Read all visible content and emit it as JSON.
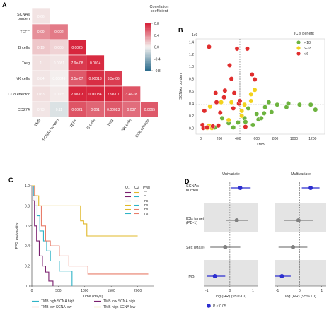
{
  "panels": {
    "a": "A",
    "b": "B",
    "c": "C",
    "d": "D"
  },
  "chart_data": [
    {
      "type": "heatmap",
      "panel": "A",
      "row_labels": [
        "SCNAs\nburden",
        "TEFF",
        "B cells",
        "Treg",
        "NK cells",
        "CD8 effector",
        "CD274"
      ],
      "col_labels": [
        "TMB",
        "SCNAs burden",
        "TEFF",
        "B cells",
        "Treg",
        "NK cells",
        "CD8 effector"
      ],
      "coef_matrix": [
        [
          0.06
        ],
        [
          0.39,
          0.47
        ],
        [
          0.17,
          0.12,
          0.82
        ],
        [
          0.07,
          0.05,
          0.72,
          0.78
        ],
        [
          0.05,
          0.01,
          0.6,
          0.77,
          0.71
        ],
        [
          0.08,
          0.03,
          0.92,
          0.85,
          0.8,
          0.62
        ],
        [
          0.05,
          -0.1,
          0.62,
          0.55,
          0.6,
          0.52,
          0.6
        ]
      ],
      "cell_labels": [
        [
          "0.66"
        ],
        [
          "0.99",
          "0.002"
        ],
        [
          "0.19",
          "0.005",
          "0.0026"
        ],
        [
          "1",
          "0.0081",
          "7.9e-08",
          "0.0014"
        ],
        [
          "0.84",
          "0.00049",
          "3.5e-07",
          "0.00013",
          "3.3e-06"
        ],
        [
          "0.63",
          "0.0035",
          "2.9e-07",
          "0.00034",
          "7.9e-07",
          "3.4e-08"
        ],
        [
          "0.73",
          "0.11",
          "0.0021",
          "0.061",
          "0.00023",
          "0.037",
          "0.0065"
        ]
      ],
      "legend_title": "Correlation\ncoefficient",
      "legend_ticks": [
        "0.8",
        "0.4",
        "0.0",
        "-0.4",
        "-0.8"
      ],
      "colors": {
        "positive": "#d7263d",
        "negative": "#2f6e8e",
        "neutral": "#f4f2f0"
      }
    },
    {
      "type": "scatter",
      "panel": "B",
      "xlabel": "TMB",
      "ylabel": "SCNAs burden",
      "y_multiplier_label": "1e9",
      "xlim": [
        -50,
        1330
      ],
      "ylim": [
        -0.1,
        1.45
      ],
      "x_ticks": [
        0,
        200,
        400,
        600,
        800,
        1000,
        1200
      ],
      "y_ticks": [
        0.0,
        0.2,
        0.4,
        0.6,
        0.8,
        1.0,
        1.2,
        1.4
      ],
      "vline_x": 420,
      "hline_y": 0.38,
      "legend_title": "ICIs benefit",
      "series": [
        {
          "name": "> 18",
          "color": "#6db33f",
          "points": [
            [
              510,
              0.32
            ],
            [
              560,
              0.05
            ],
            [
              600,
              0.23
            ],
            [
              620,
              0.14
            ],
            [
              650,
              0.16
            ],
            [
              680,
              0.24
            ],
            [
              690,
              0.34
            ],
            [
              760,
              0.26
            ],
            [
              820,
              0.38
            ],
            [
              920,
              0.34
            ],
            [
              940,
              0.4
            ],
            [
              1060,
              0.38
            ],
            [
              1180,
              0.38
            ],
            [
              1230,
              0.3
            ],
            [
              470,
              0.16
            ],
            [
              480,
              0.1
            ],
            [
              730,
              0.42
            ],
            [
              230,
              0.16
            ],
            [
              300,
              0.08
            ],
            [
              350,
              0.01
            ],
            [
              150,
              0.01
            ],
            [
              400,
              0.09
            ]
          ]
        },
        {
          "name": "6–18",
          "color": "#f2d21d",
          "points": [
            [
              100,
              0.35
            ],
            [
              220,
              0.42
            ],
            [
              300,
              0.13
            ],
            [
              330,
              0.42
            ],
            [
              440,
              0.2
            ],
            [
              540,
              0.55
            ],
            [
              540,
              0.44
            ],
            [
              580,
              0.62
            ],
            [
              440,
              0.28
            ],
            [
              470,
              0.38
            ],
            [
              90,
              0.04
            ],
            [
              120,
              0.0
            ],
            [
              70,
              0.0
            ]
          ]
        },
        {
          "name": "< 6",
          "color": "#e02d2d",
          "points": [
            [
              20,
              0.05
            ],
            [
              40,
              0.28
            ],
            [
              90,
              1.32
            ],
            [
              160,
              0.57
            ],
            [
              170,
              0.42
            ],
            [
              190,
              0.04
            ],
            [
              210,
              0.25
            ],
            [
              260,
              0.61
            ],
            [
              310,
              1.02
            ],
            [
              330,
              0.8
            ],
            [
              350,
              0.32
            ],
            [
              360,
              0.57
            ],
            [
              390,
              1.29
            ],
            [
              410,
              0.4
            ],
            [
              420,
              0.44
            ],
            [
              480,
              0.02
            ],
            [
              500,
              1.29
            ],
            [
              550,
              0.87
            ],
            [
              580,
              0.79
            ],
            [
              30,
              0.0
            ],
            [
              70,
              0.01
            ],
            [
              130,
              0.03
            ],
            [
              250,
              0.5
            ]
          ]
        }
      ]
    },
    {
      "type": "line",
      "panel": "C",
      "xlabel": "Time (days)",
      "ylabel": "PFS probability",
      "xlim": [
        0,
        2300
      ],
      "ylim": [
        0,
        1.0
      ],
      "x_ticks": [
        0,
        500,
        1000,
        1500,
        2000
      ],
      "y_ticks": [
        0.0,
        0.2,
        0.4,
        0.6,
        0.8,
        1.0
      ],
      "comparison_header": [
        "Q1",
        "Q2",
        "Pval"
      ],
      "comparisons": [
        {
          "q1_color": "#7a1f6e",
          "q2_color": "#e0b82a",
          "pval": "**"
        },
        {
          "q1_color": "#7a1f6e",
          "q2_color": "#2fb3c6",
          "pval": "*"
        },
        {
          "q1_color": "#7a1f6e",
          "q2_color": "#e87d6a",
          "pval": "ns"
        },
        {
          "q1_color": "#e0b82a",
          "q2_color": "#2fb3c6",
          "pval": "ns"
        },
        {
          "q1_color": "#e0b82a",
          "q2_color": "#e87d6a",
          "pval": "ns"
        },
        {
          "q1_color": "#2fb3c6",
          "q2_color": "#e87d6a",
          "pval": "ns"
        }
      ],
      "series": [
        {
          "name": "TMB high SCNA high",
          "color": "#2fb3c6",
          "steps": [
            [
              0,
              1.0
            ],
            [
              30,
              0.9
            ],
            [
              60,
              0.8
            ],
            [
              100,
              0.7
            ],
            [
              150,
              0.55
            ],
            [
              220,
              0.45
            ],
            [
              280,
              0.35
            ],
            [
              350,
              0.25
            ],
            [
              480,
              0.25
            ],
            [
              520,
              0.15
            ],
            [
              700,
              0.15
            ],
            [
              760,
              0.0
            ]
          ]
        },
        {
          "name": "TMB low SCNA low",
          "color": "#e87d6a",
          "steps": [
            [
              0,
              1.0
            ],
            [
              50,
              0.9
            ],
            [
              100,
              0.8
            ],
            [
              180,
              0.6
            ],
            [
              260,
              0.45
            ],
            [
              350,
              0.4
            ],
            [
              520,
              0.3
            ],
            [
              700,
              0.2
            ],
            [
              1000,
              0.2
            ],
            [
              1060,
              0.12
            ],
            [
              2200,
              0.12
            ]
          ]
        },
        {
          "name": "TMB low SCNA high",
          "color": "#7a1f6e",
          "steps": [
            [
              0,
              1.0
            ],
            [
              20,
              0.85
            ],
            [
              50,
              0.6
            ],
            [
              90,
              0.45
            ],
            [
              140,
              0.3
            ],
            [
              200,
              0.2
            ],
            [
              260,
              0.14
            ],
            [
              320,
              0.05
            ],
            [
              400,
              0.0
            ]
          ]
        },
        {
          "name": "TMB high SCNA low",
          "color": "#e0b82a",
          "steps": [
            [
              0,
              1.0
            ],
            [
              60,
              0.9
            ],
            [
              130,
              0.8
            ],
            [
              900,
              0.8
            ],
            [
              920,
              0.65
            ],
            [
              980,
              0.62
            ],
            [
              1040,
              0.5
            ],
            [
              1450,
              0.5
            ],
            [
              2000,
              0.5
            ]
          ]
        }
      ]
    },
    {
      "type": "scatter",
      "panel": "D",
      "subtitle_left": "Univariate",
      "subtitle_right": "Multivariate",
      "xlabel": "log (HR) (95% CI)",
      "x_ticks_left": [
        -1,
        0,
        1
      ],
      "x_ticks_right": [
        -1,
        0,
        1
      ],
      "xlim": [
        -1.1,
        1.2
      ],
      "rows": [
        "SCNAs\nburden",
        "ICIs target\n(PD-1)",
        "Sex (Male)",
        "TMB"
      ],
      "univariate": [
        {
          "row": "SCNAs\nburden",
          "est": 0.45,
          "lo": 0.05,
          "hi": 0.9,
          "significant": true
        },
        {
          "row": "ICIs target\n(PD-1)",
          "est": 0.3,
          "lo": -0.15,
          "hi": 0.8,
          "significant": false
        },
        {
          "row": "Sex (Male)",
          "est": -0.2,
          "lo": -0.85,
          "hi": 0.45,
          "significant": false
        },
        {
          "row": "TMB",
          "est": -0.65,
          "lo": -1.0,
          "hi": -0.2,
          "significant": true
        }
      ],
      "multivariate": [
        {
          "row": "SCNAs\nburden",
          "est": 0.5,
          "lo": 0.1,
          "hi": 0.9,
          "significant": true
        },
        {
          "row": "ICIs target\n(PD-1)",
          "est": -0.05,
          "lo": -0.7,
          "hi": 0.6,
          "significant": false
        },
        {
          "row": "Sex (Male)",
          "est": -0.3,
          "lo": -0.95,
          "hi": 0.35,
          "significant": false
        },
        {
          "row": "TMB",
          "est": -0.8,
          "lo": -1.1,
          "hi": -0.4,
          "significant": true
        }
      ],
      "legend_label": "P < 0.05",
      "colors": {
        "significant": "#2c2ecf",
        "ns": "#808080"
      }
    }
  ]
}
